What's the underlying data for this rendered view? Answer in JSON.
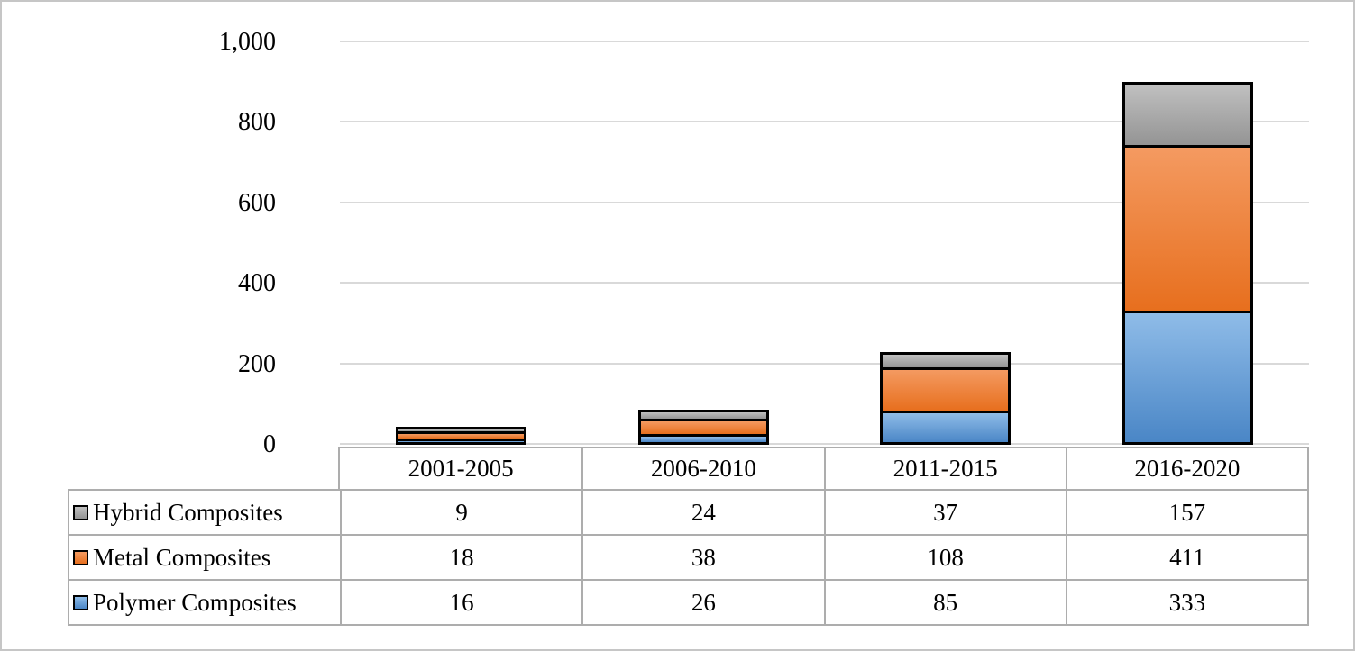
{
  "chart_data": {
    "type": "bar",
    "stacked": true,
    "title": "",
    "xlabel": "",
    "ylabel": "",
    "categories": [
      "2001-2005",
      "2006-2010",
      "2011-2015",
      "2016-2020"
    ],
    "series": [
      {
        "name": "Polymer Composites",
        "values": [
          16,
          26,
          85,
          333
        ],
        "color": "#5B9BD5",
        "fill_top": "#8fbce8",
        "fill_bottom": "#4a86c6"
      },
      {
        "name": "Metal Composites",
        "values": [
          18,
          38,
          108,
          411
        ],
        "color": "#ED7D31",
        "fill_top": "#f49a61",
        "fill_bottom": "#e76f1e"
      },
      {
        "name": "Hybrid Composites",
        "values": [
          9,
          24,
          37,
          157
        ],
        "color": "#A5A5A5",
        "fill_top": "#c0c0c0",
        "fill_bottom": "#949494"
      }
    ],
    "ylim": [
      0,
      1000
    ],
    "yticks": [
      0,
      200,
      400,
      600,
      800,
      1000
    ],
    "ytick_labels": [
      "0",
      "200",
      "400",
      "600",
      "800",
      "1,000"
    ],
    "grid": true,
    "legend_position": "table-left",
    "gridline_color": "#d9d9d9",
    "bar_border_color": "#000000",
    "table_border_color": "#adadad"
  },
  "table": {
    "rows": [
      {
        "label": "Hybrid Composites",
        "marker_top": "#c0c0c0",
        "marker_bottom": "#949494",
        "values": [
          "9",
          "24",
          "37",
          "157"
        ]
      },
      {
        "label": "Metal Composites",
        "marker_top": "#f49a61",
        "marker_bottom": "#e76f1e",
        "values": [
          "18",
          "38",
          "108",
          "411"
        ]
      },
      {
        "label": "Polymer Composites",
        "marker_top": "#8fbce8",
        "marker_bottom": "#4a86c6",
        "values": [
          "16",
          "26",
          "85",
          "333"
        ]
      }
    ]
  }
}
